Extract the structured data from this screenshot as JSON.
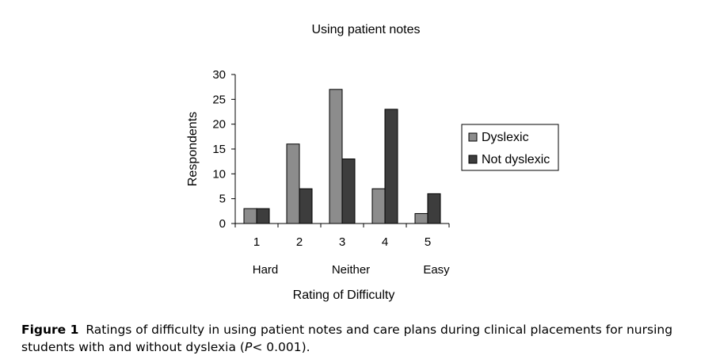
{
  "chart_data": {
    "type": "bar",
    "title": "Using patient notes",
    "categories": [
      "1",
      "2",
      "3",
      "4",
      "5"
    ],
    "category_descriptors": [
      "Hard",
      "",
      "Neither",
      "",
      "Easy"
    ],
    "xlabel": "Rating of Difficulty",
    "ylabel": "Respondents",
    "ylim": [
      0,
      30
    ],
    "yticks": [
      "0",
      "5",
      "10",
      "15",
      "20",
      "25",
      "30"
    ],
    "grid": false,
    "legend_position": "right",
    "series": [
      {
        "name": "Dyslexic",
        "color": "#8c8c8c",
        "values": [
          3,
          16,
          27,
          7,
          2
        ]
      },
      {
        "name": "Not dyslexic",
        "color": "#3d3d3d",
        "values": [
          3,
          7,
          13,
          23,
          6
        ]
      }
    ]
  },
  "caption": {
    "figure_label": "Figure 1",
    "text_before": "Ratings of difficulty in using patient notes and care plans during clinical placements for nursing students with and without dyslexia (",
    "p_symbol": "P",
    "text_after": "< 0.001)."
  }
}
